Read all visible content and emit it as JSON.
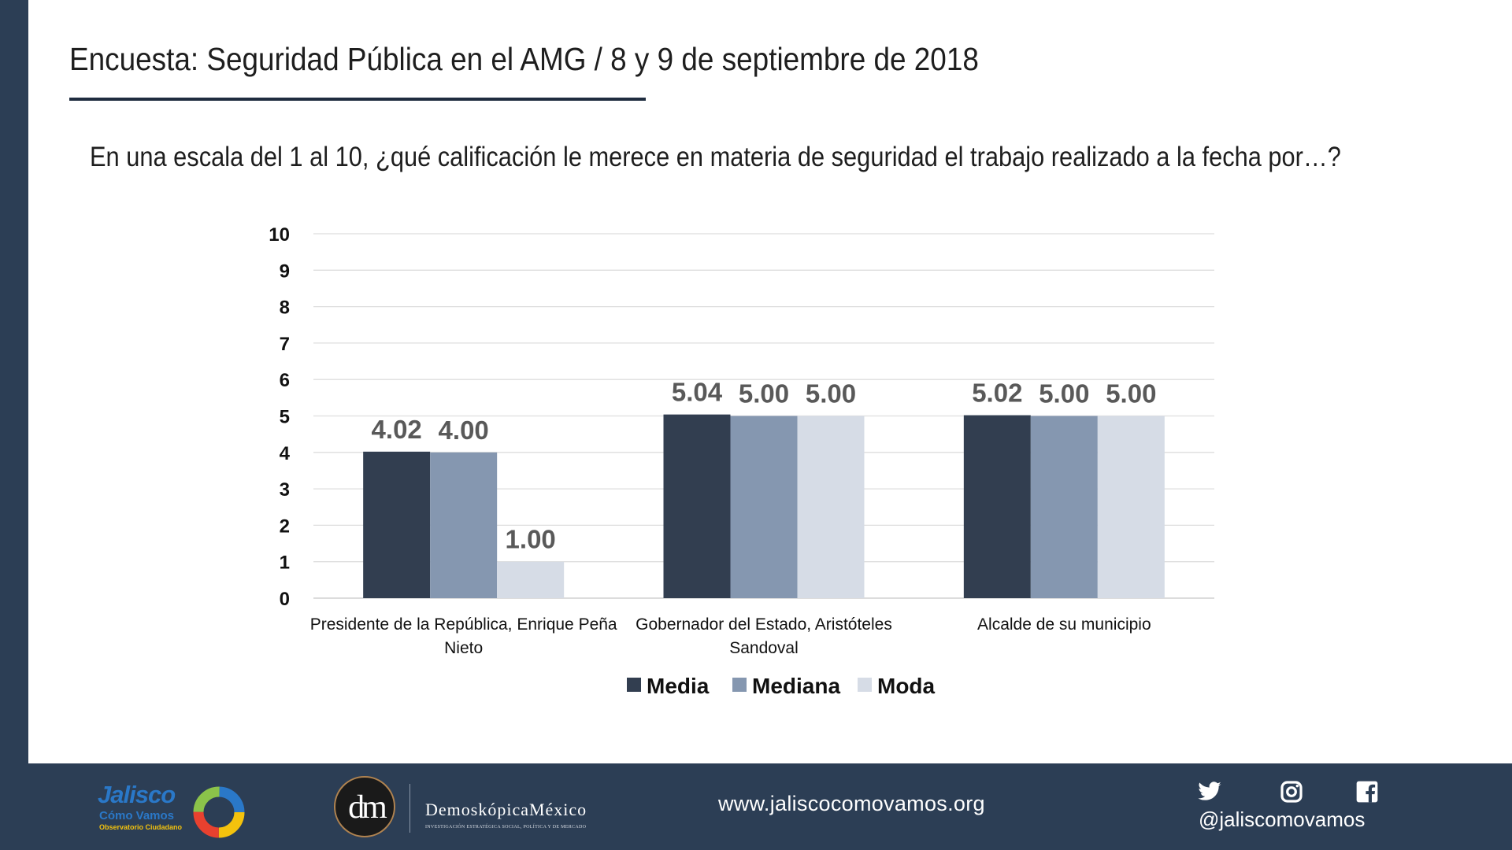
{
  "slide": {
    "title": "Encuesta: Seguridad Pública en el AMG / 8 y 9 de septiembre de 2018",
    "question": "En una escala del 1 al 10, ¿qué calificación le merece en materia de seguridad el trabajo realizado a la fecha por…?"
  },
  "chart_data": {
    "type": "bar",
    "categories": [
      [
        "Presidente de la República, Enrique Peña",
        "Nieto"
      ],
      [
        "Gobernador del Estado, Aristóteles",
        "Sandoval"
      ],
      [
        "Alcalde de su municipio"
      ]
    ],
    "series": [
      {
        "name": "Media",
        "values": [
          4.02,
          5.04,
          5.02
        ],
        "labels": [
          "4.02",
          "5.04",
          "5.02"
        ],
        "color": "#323e50"
      },
      {
        "name": "Mediana",
        "values": [
          4.0,
          5.0,
          5.0
        ],
        "labels": [
          "4.00",
          "5.00",
          "5.00"
        ],
        "color": "#8597b0"
      },
      {
        "name": "Moda",
        "values": [
          1.0,
          5.0,
          5.0
        ],
        "labels": [
          "1.00",
          "5.00",
          "5.00"
        ],
        "color": "#d6dce6"
      }
    ],
    "ylim": [
      0,
      10
    ],
    "yticks": [
      "0",
      "1",
      "2",
      "3",
      "4",
      "5",
      "6",
      "7",
      "8",
      "9",
      "10"
    ],
    "grid": true,
    "legend_position": "bottom-center"
  },
  "footer": {
    "jcv_logo": {
      "line1": "Jalisco",
      "line2": "Cómo Vamos",
      "line3": "Observatorio Ciudadano"
    },
    "dm_logo": {
      "monogram": "dm",
      "name": "DemoskópicaMéxico",
      "tagline": "INVESTIGACIÓN ESTRATÉGICA SOCIAL, POLÍTICA Y DE MERCADO"
    },
    "website": "www.jaliscocomovamos.org",
    "handle": "@jaliscomovamos",
    "icons": [
      "twitter-icon",
      "instagram-icon",
      "facebook-icon"
    ]
  },
  "colors": {
    "navy": "#2c3e55",
    "accent_yellow": "#f3c20d",
    "brand_blue": "#2a78c8"
  }
}
